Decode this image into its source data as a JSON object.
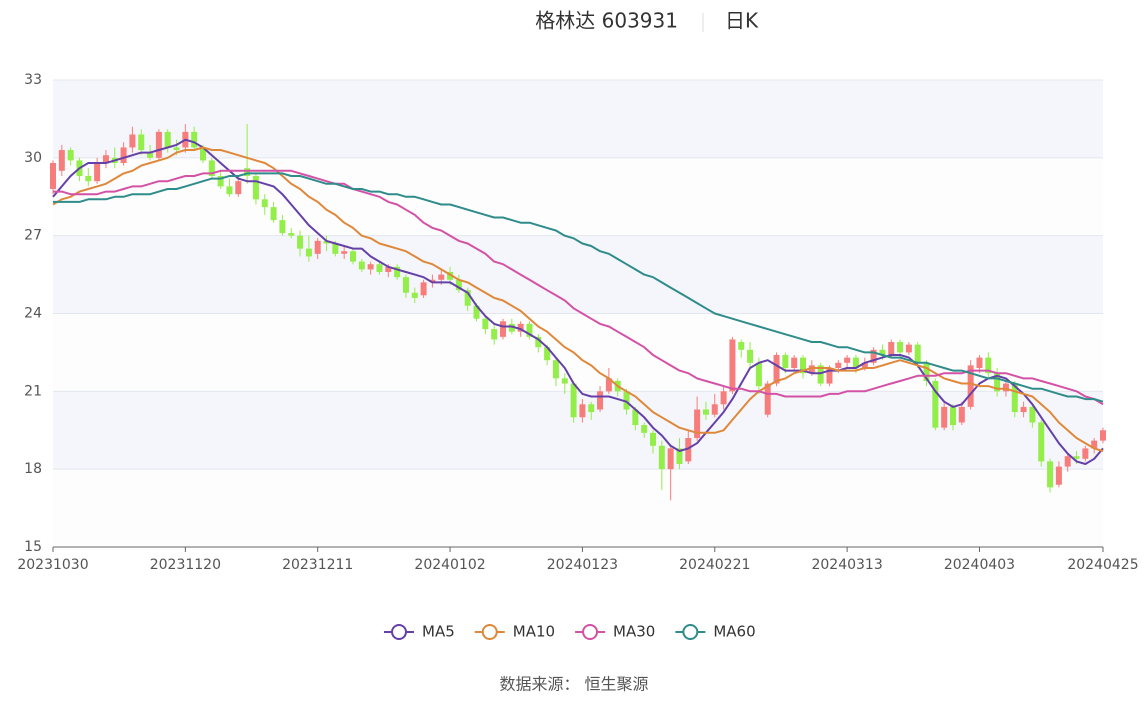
{
  "chart_data": {
    "type": "candlestick",
    "title": "格林达 603931",
    "subtitle": "日K",
    "source": "数据来源： 恒生聚源",
    "categories": [
      "20231030",
      null,
      null,
      null,
      null,
      null,
      null,
      null,
      null,
      null,
      null,
      null,
      null,
      null,
      null,
      "20231120",
      null,
      null,
      null,
      null,
      null,
      null,
      null,
      null,
      null,
      null,
      null,
      null,
      null,
      null,
      "20231211",
      null,
      null,
      null,
      null,
      null,
      null,
      null,
      null,
      null,
      null,
      null,
      null,
      null,
      null,
      "20240102",
      null,
      null,
      null,
      null,
      null,
      null,
      null,
      null,
      null,
      null,
      null,
      null,
      null,
      null,
      "20240123",
      null,
      null,
      null,
      null,
      null,
      null,
      null,
      null,
      null,
      null,
      null,
      null,
      null,
      null,
      "20240221",
      null,
      null,
      null,
      null,
      null,
      null,
      null,
      null,
      null,
      null,
      null,
      null,
      null,
      null,
      "20240313",
      null,
      null,
      null,
      null,
      null,
      null,
      null,
      null,
      null,
      null,
      null,
      null,
      null,
      null,
      "20240403",
      null,
      null,
      null,
      null,
      null,
      null,
      null,
      null,
      null,
      null,
      null,
      null,
      null,
      "20240425"
    ],
    "up_color": "#f77d7d",
    "down_color": "#93ee4a",
    "candles": [
      [
        28.8,
        29.8,
        28.6,
        29.9
      ],
      [
        29.5,
        30.3,
        29.3,
        30.5
      ],
      [
        30.3,
        29.9,
        29.7,
        30.4
      ],
      [
        29.9,
        29.3,
        29.1,
        30.0
      ],
      [
        29.3,
        29.1,
        28.9,
        29.6
      ],
      [
        29.1,
        29.8,
        29.0,
        30.0
      ],
      [
        29.8,
        30.1,
        29.6,
        30.3
      ],
      [
        30.0,
        29.8,
        29.6,
        30.4
      ],
      [
        29.8,
        30.4,
        29.7,
        30.6
      ],
      [
        30.4,
        30.9,
        30.2,
        31.2
      ],
      [
        30.9,
        30.3,
        30.1,
        31.1
      ],
      [
        30.2,
        30.0,
        29.9,
        30.5
      ],
      [
        30.0,
        31.0,
        29.9,
        31.1
      ],
      [
        31.0,
        30.4,
        30.2,
        31.1
      ],
      [
        30.4,
        30.3,
        30.1,
        30.7
      ],
      [
        30.4,
        31.0,
        30.2,
        31.3
      ],
      [
        31.0,
        30.4,
        30.3,
        31.2
      ],
      [
        30.4,
        29.9,
        29.8,
        30.5
      ],
      [
        29.9,
        29.3,
        29.2,
        30.0
      ],
      [
        29.3,
        28.9,
        28.8,
        29.5
      ],
      [
        28.9,
        28.6,
        28.5,
        29.2
      ],
      [
        28.6,
        29.1,
        28.5,
        29.3
      ],
      [
        29.6,
        29.3,
        29.0,
        31.3
      ],
      [
        29.3,
        28.4,
        28.2,
        29.4
      ],
      [
        28.4,
        28.1,
        27.8,
        28.6
      ],
      [
        28.1,
        27.6,
        27.5,
        28.3
      ],
      [
        27.6,
        27.1,
        27.0,
        27.8
      ],
      [
        27.1,
        27.0,
        26.9,
        27.3
      ],
      [
        27.0,
        26.5,
        26.2,
        27.2
      ],
      [
        26.5,
        26.2,
        26.0,
        27.0
      ],
      [
        26.3,
        26.8,
        26.1,
        26.9
      ],
      [
        26.8,
        26.7,
        26.4,
        27.0
      ],
      [
        26.7,
        26.3,
        26.2,
        26.8
      ],
      [
        26.3,
        26.4,
        26.1,
        26.6
      ],
      [
        26.4,
        26.0,
        25.9,
        26.5
      ],
      [
        26.0,
        25.7,
        25.6,
        26.1
      ],
      [
        25.7,
        25.9,
        25.5,
        26.0
      ],
      [
        25.9,
        25.6,
        25.5,
        26.0
      ],
      [
        25.6,
        25.8,
        25.4,
        25.9
      ],
      [
        25.8,
        25.4,
        25.3,
        25.9
      ],
      [
        25.4,
        24.8,
        24.6,
        25.5
      ],
      [
        24.8,
        24.6,
        24.4,
        25.0
      ],
      [
        24.7,
        25.2,
        24.6,
        25.3
      ],
      [
        25.2,
        25.3,
        25.0,
        25.5
      ],
      [
        25.3,
        25.5,
        25.1,
        25.7
      ],
      [
        25.6,
        25.3,
        25.1,
        25.8
      ],
      [
        25.3,
        24.9,
        24.8,
        25.5
      ],
      [
        24.9,
        24.3,
        24.1,
        25.0
      ],
      [
        24.3,
        23.8,
        23.7,
        24.4
      ],
      [
        23.8,
        23.4,
        23.2,
        23.9
      ],
      [
        23.4,
        23.0,
        22.8,
        23.6
      ],
      [
        23.1,
        23.7,
        23.0,
        23.8
      ],
      [
        23.6,
        23.3,
        23.2,
        23.8
      ],
      [
        23.3,
        23.6,
        23.1,
        23.7
      ],
      [
        23.6,
        23.1,
        23.0,
        23.7
      ],
      [
        23.1,
        22.7,
        22.5,
        23.2
      ],
      [
        22.7,
        22.2,
        22.0,
        22.8
      ],
      [
        22.2,
        21.5,
        21.2,
        22.3
      ],
      [
        21.5,
        21.3,
        20.9,
        21.7
      ],
      [
        21.3,
        20.0,
        19.8,
        21.4
      ],
      [
        20.0,
        20.5,
        19.8,
        20.7
      ],
      [
        20.5,
        20.2,
        19.9,
        20.6
      ],
      [
        20.3,
        21.0,
        20.2,
        21.2
      ],
      [
        21.0,
        21.5,
        20.9,
        21.9
      ],
      [
        21.4,
        21.0,
        20.8,
        21.5
      ],
      [
        21.0,
        20.3,
        20.1,
        21.1
      ],
      [
        20.3,
        19.7,
        19.5,
        20.4
      ],
      [
        19.7,
        19.4,
        19.2,
        19.8
      ],
      [
        19.4,
        18.9,
        18.6,
        19.5
      ],
      [
        18.9,
        18.0,
        17.2,
        19.1
      ],
      [
        18.0,
        18.8,
        16.8,
        18.9
      ],
      [
        18.8,
        18.2,
        18.0,
        19.2
      ],
      [
        18.3,
        19.2,
        18.2,
        19.5
      ],
      [
        19.2,
        20.3,
        19.1,
        20.8
      ],
      [
        20.3,
        20.1,
        19.9,
        20.6
      ],
      [
        20.1,
        20.5,
        20.0,
        20.9
      ],
      [
        20.5,
        21.0,
        20.3,
        21.2
      ],
      [
        21.0,
        23.0,
        20.9,
        23.1
      ],
      [
        22.9,
        22.6,
        22.3,
        23.0
      ],
      [
        22.6,
        22.1,
        21.9,
        22.9
      ],
      [
        22.1,
        21.2,
        20.9,
        22.3
      ],
      [
        20.1,
        21.3,
        20.0,
        21.4
      ],
      [
        21.3,
        22.4,
        21.2,
        22.5
      ],
      [
        22.4,
        21.9,
        21.7,
        22.5
      ],
      [
        21.9,
        22.3,
        21.8,
        22.4
      ],
      [
        22.3,
        21.7,
        21.5,
        22.4
      ],
      [
        21.7,
        22.0,
        21.6,
        22.2
      ],
      [
        22.0,
        21.3,
        21.2,
        22.1
      ],
      [
        21.3,
        21.9,
        21.2,
        22.0
      ],
      [
        21.9,
        22.1,
        21.7,
        22.2
      ],
      [
        22.1,
        22.3,
        21.9,
        22.4
      ],
      [
        22.3,
        21.9,
        21.7,
        22.4
      ],
      [
        21.9,
        22.1,
        21.8,
        22.3
      ],
      [
        22.1,
        22.6,
        22.0,
        22.7
      ],
      [
        22.6,
        22.4,
        22.2,
        22.8
      ],
      [
        22.4,
        22.9,
        22.3,
        23.0
      ],
      [
        22.9,
        22.5,
        22.3,
        23.0
      ],
      [
        22.5,
        22.8,
        22.4,
        22.9
      ],
      [
        22.8,
        22.1,
        21.9,
        22.9
      ],
      [
        22.1,
        21.4,
        21.2,
        22.2
      ],
      [
        21.4,
        19.6,
        19.5,
        21.5
      ],
      [
        19.6,
        20.4,
        19.5,
        20.6
      ],
      [
        20.4,
        19.7,
        19.5,
        20.5
      ],
      [
        19.8,
        20.4,
        19.7,
        20.6
      ],
      [
        20.4,
        22.0,
        20.3,
        22.2
      ],
      [
        21.9,
        22.3,
        21.7,
        22.4
      ],
      [
        22.3,
        21.7,
        21.5,
        22.5
      ],
      [
        21.7,
        21.0,
        20.8,
        21.9
      ],
      [
        21.0,
        21.3,
        20.8,
        21.5
      ],
      [
        21.3,
        20.2,
        20.0,
        21.4
      ],
      [
        20.2,
        20.4,
        20.0,
        20.6
      ],
      [
        20.4,
        19.8,
        19.6,
        20.5
      ],
      [
        19.8,
        18.3,
        18.1,
        19.9
      ],
      [
        18.3,
        17.3,
        17.1,
        18.4
      ],
      [
        17.4,
        18.1,
        17.3,
        18.3
      ],
      [
        18.1,
        18.5,
        17.9,
        18.6
      ],
      [
        18.5,
        18.4,
        18.2,
        18.7
      ],
      [
        18.4,
        18.8,
        18.3,
        18.9
      ],
      [
        18.8,
        19.1,
        18.6,
        19.2
      ],
      [
        19.1,
        19.5,
        19.0,
        19.6
      ]
    ],
    "series": [
      {
        "name": "MA5",
        "color": "#6440a8",
        "values": [
          28.5,
          28.9,
          29.3,
          29.6,
          29.8,
          29.8,
          29.8,
          29.9,
          30.0,
          30.1,
          30.2,
          30.2,
          30.3,
          30.4,
          30.5,
          30.7,
          30.6,
          30.4,
          30.1,
          29.8,
          29.5,
          29.2,
          29.1,
          29.1,
          29.0,
          28.9,
          28.6,
          28.2,
          27.8,
          27.4,
          27.1,
          26.8,
          26.7,
          26.6,
          26.5,
          26.5,
          26.2,
          26.0,
          25.8,
          25.7,
          25.6,
          25.5,
          25.4,
          25.2,
          25.2,
          25.2,
          25.0,
          24.8,
          24.3,
          23.9,
          23.6,
          23.5,
          23.5,
          23.4,
          23.2,
          23.0,
          22.7,
          22.3,
          21.9,
          21.3,
          20.9,
          20.8,
          20.8,
          20.8,
          20.7,
          20.6,
          20.3,
          20.0,
          19.6,
          19.3,
          18.9,
          18.7,
          18.8,
          19.0,
          19.4,
          19.8,
          20.2,
          20.7,
          21.3,
          21.9,
          22.1,
          22.2,
          22.0,
          21.8,
          21.8,
          21.8,
          21.7,
          21.7,
          21.8,
          21.8,
          21.9,
          21.9,
          22.1,
          22.2,
          22.3,
          22.4,
          22.4,
          22.3,
          22.0,
          21.5,
          21.0,
          20.6,
          20.4,
          20.5,
          20.9,
          21.3,
          21.5,
          21.6,
          21.5,
          21.2,
          20.9,
          20.5,
          20.0,
          19.5,
          19.0,
          18.6,
          18.3,
          18.2,
          18.4,
          18.8
        ]
      },
      {
        "name": "MA10",
        "color": "#e0883a",
        "values": [
          28.2,
          28.4,
          28.5,
          28.7,
          28.8,
          28.9,
          29.0,
          29.2,
          29.4,
          29.5,
          29.7,
          29.8,
          29.9,
          30.0,
          30.2,
          30.3,
          30.3,
          30.4,
          30.3,
          30.3,
          30.2,
          30.1,
          30.0,
          29.9,
          29.8,
          29.6,
          29.3,
          29.0,
          28.8,
          28.5,
          28.3,
          28.0,
          27.8,
          27.5,
          27.3,
          27.0,
          26.9,
          26.7,
          26.6,
          26.5,
          26.4,
          26.2,
          26.0,
          25.9,
          25.7,
          25.5,
          25.3,
          25.2,
          25.0,
          24.8,
          24.6,
          24.5,
          24.3,
          24.1,
          23.8,
          23.5,
          23.3,
          23.0,
          22.7,
          22.5,
          22.2,
          22.0,
          21.7,
          21.5,
          21.2,
          21.0,
          20.8,
          20.5,
          20.2,
          20.0,
          19.8,
          19.6,
          19.5,
          19.4,
          19.4,
          19.4,
          19.5,
          19.9,
          20.3,
          20.7,
          21.0,
          21.2,
          21.4,
          21.5,
          21.7,
          21.8,
          21.9,
          21.9,
          21.9,
          21.8,
          21.8,
          21.8,
          21.9,
          21.9,
          22.0,
          22.1,
          22.2,
          22.1,
          22.0,
          21.9,
          21.7,
          21.5,
          21.4,
          21.3,
          21.3,
          21.2,
          21.2,
          21.1,
          21.1,
          21.0,
          20.9,
          20.8,
          20.5,
          20.2,
          19.8,
          19.5,
          19.2,
          19.0,
          18.8,
          18.7
        ]
      },
      {
        "name": "MA30",
        "color": "#d452a6",
        "values": [
          28.7,
          28.7,
          28.6,
          28.6,
          28.6,
          28.6,
          28.7,
          28.7,
          28.8,
          28.9,
          28.9,
          29.0,
          29.1,
          29.1,
          29.2,
          29.3,
          29.3,
          29.4,
          29.4,
          29.5,
          29.5,
          29.5,
          29.5,
          29.5,
          29.5,
          29.5,
          29.5,
          29.5,
          29.4,
          29.3,
          29.2,
          29.1,
          29.0,
          29.0,
          28.8,
          28.7,
          28.6,
          28.5,
          28.3,
          28.2,
          28.0,
          27.8,
          27.5,
          27.3,
          27.2,
          27.0,
          26.8,
          26.7,
          26.5,
          26.3,
          26.0,
          25.9,
          25.7,
          25.5,
          25.3,
          25.1,
          24.9,
          24.7,
          24.5,
          24.2,
          24.0,
          23.8,
          23.6,
          23.5,
          23.3,
          23.1,
          22.9,
          22.7,
          22.4,
          22.2,
          22.0,
          21.8,
          21.7,
          21.5,
          21.4,
          21.3,
          21.2,
          21.1,
          21.1,
          21.0,
          21.0,
          20.9,
          20.9,
          20.8,
          20.8,
          20.8,
          20.8,
          20.8,
          20.9,
          20.9,
          21.0,
          21.0,
          21.0,
          21.1,
          21.2,
          21.3,
          21.4,
          21.5,
          21.6,
          21.6,
          21.6,
          21.7,
          21.7,
          21.7,
          21.8,
          21.8,
          21.8,
          21.7,
          21.7,
          21.6,
          21.5,
          21.5,
          21.4,
          21.3,
          21.2,
          21.1,
          21.0,
          20.8,
          20.7,
          20.5
        ]
      },
      {
        "name": "MA60",
        "color": "#2f8c8a",
        "values": [
          28.3,
          28.3,
          28.3,
          28.3,
          28.4,
          28.4,
          28.4,
          28.5,
          28.5,
          28.6,
          28.6,
          28.6,
          28.7,
          28.8,
          28.8,
          28.9,
          29.0,
          29.1,
          29.2,
          29.2,
          29.3,
          29.3,
          29.4,
          29.4,
          29.4,
          29.4,
          29.4,
          29.3,
          29.3,
          29.2,
          29.1,
          29.0,
          29.0,
          28.9,
          28.8,
          28.8,
          28.7,
          28.7,
          28.6,
          28.6,
          28.5,
          28.5,
          28.4,
          28.3,
          28.2,
          28.2,
          28.1,
          28.0,
          27.9,
          27.8,
          27.7,
          27.7,
          27.6,
          27.5,
          27.5,
          27.4,
          27.3,
          27.2,
          27.0,
          26.9,
          26.7,
          26.6,
          26.4,
          26.3,
          26.1,
          25.9,
          25.7,
          25.5,
          25.4,
          25.2,
          25.0,
          24.8,
          24.6,
          24.4,
          24.2,
          24.0,
          23.9,
          23.8,
          23.7,
          23.6,
          23.5,
          23.4,
          23.3,
          23.2,
          23.1,
          23.0,
          22.9,
          22.9,
          22.8,
          22.7,
          22.7,
          22.6,
          22.5,
          22.5,
          22.4,
          22.3,
          22.3,
          22.2,
          22.1,
          22.1,
          22.0,
          21.9,
          21.8,
          21.8,
          21.7,
          21.6,
          21.5,
          21.5,
          21.4,
          21.3,
          21.2,
          21.1,
          21.1,
          21.0,
          20.9,
          20.8,
          20.8,
          20.7,
          20.7,
          20.6
        ]
      }
    ],
    "ylim": [
      15,
      33
    ],
    "yticks": [
      15,
      18,
      21,
      24,
      27,
      30,
      33
    ],
    "grid": true
  }
}
